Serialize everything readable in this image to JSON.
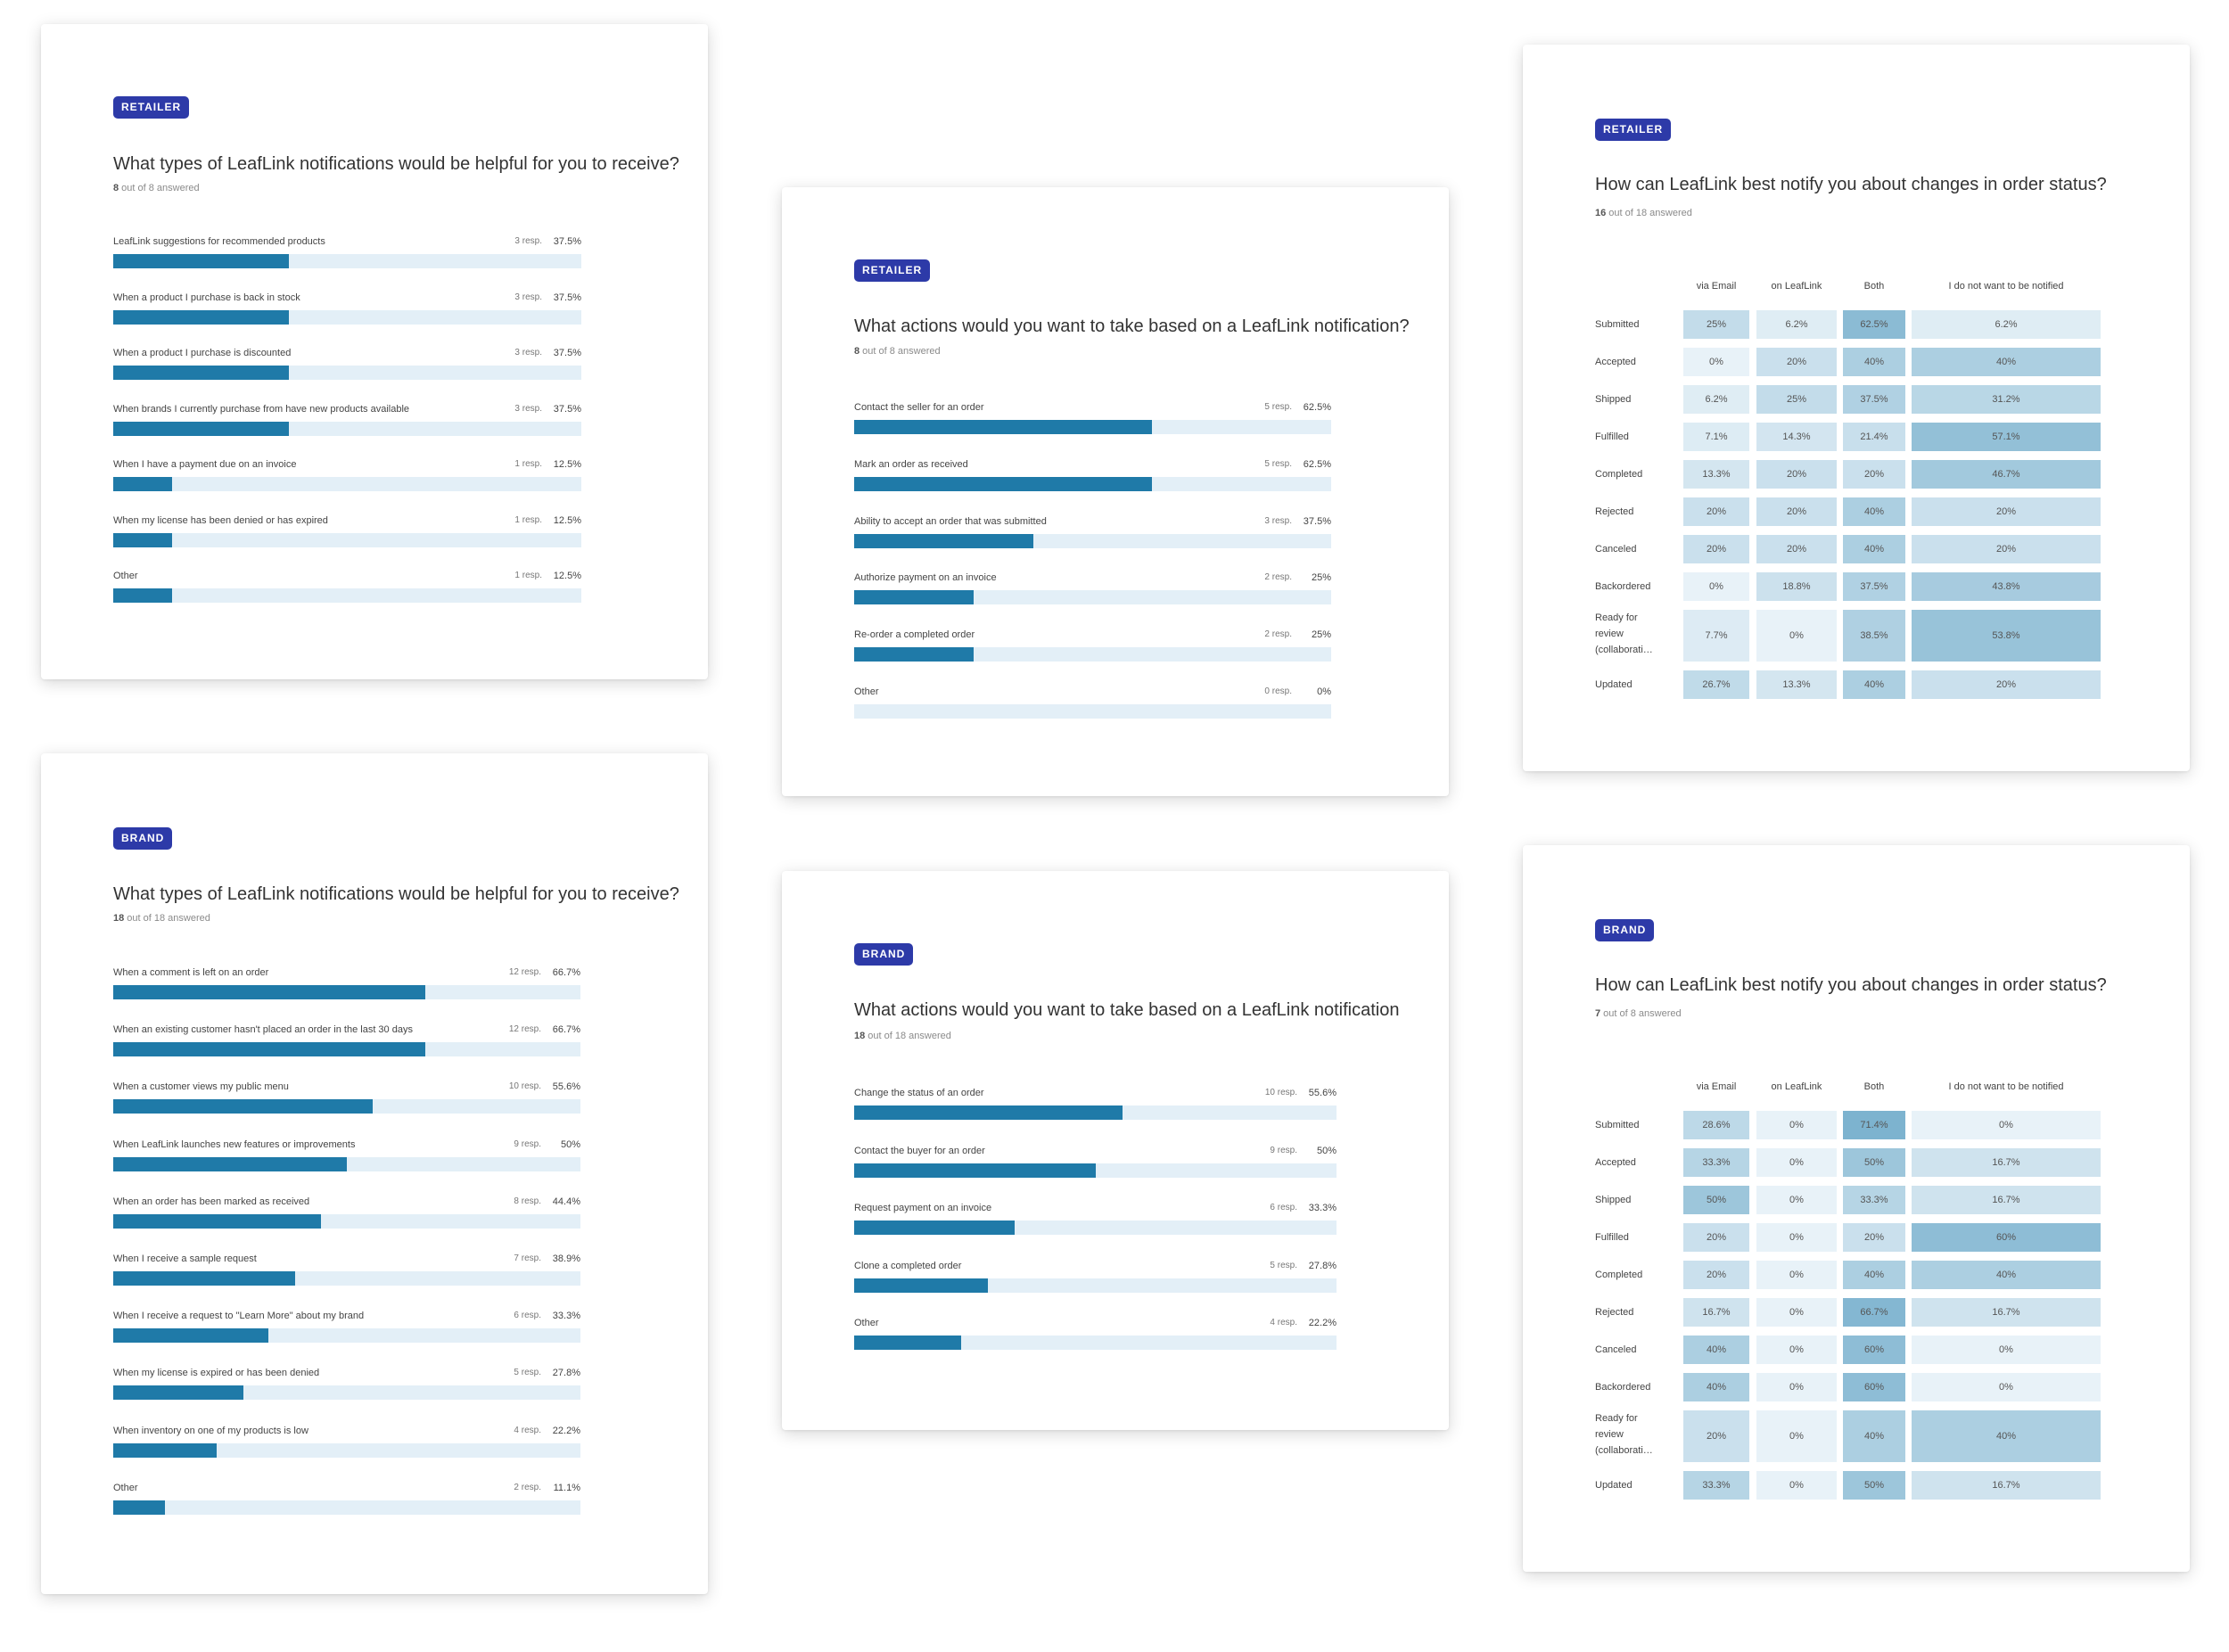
{
  "colors": {
    "tag": "#2d3aa8",
    "bar": "#1f7aa8",
    "track": "#e3eff7"
  },
  "cards": {
    "retailer_types": {
      "tag": "RETAILER",
      "title": "What types of LeafLink notifications would be helpful for you to receive?",
      "answered_count": "8",
      "answered_rest": " out of 8 answered",
      "items": [
        {
          "label": "LeafLink suggestions for recommended products",
          "resp": "3 resp.",
          "pct": "37.5%",
          "value": 37.5
        },
        {
          "label": "When a product I purchase is back in stock",
          "resp": "3 resp.",
          "pct": "37.5%",
          "value": 37.5
        },
        {
          "label": "When a product I purchase is discounted",
          "resp": "3 resp.",
          "pct": "37.5%",
          "value": 37.5
        },
        {
          "label": "When brands I currently purchase from have new products available",
          "resp": "3 resp.",
          "pct": "37.5%",
          "value": 37.5
        },
        {
          "label": "When I have a payment due on an invoice",
          "resp": "1 resp.",
          "pct": "12.5%",
          "value": 12.5
        },
        {
          "label": "When my license has been denied or has expired",
          "resp": "1 resp.",
          "pct": "12.5%",
          "value": 12.5
        },
        {
          "label": "Other",
          "resp": "1 resp.",
          "pct": "12.5%",
          "value": 12.5
        }
      ]
    },
    "brand_types": {
      "tag": "BRAND",
      "title": "What types of LeafLink notifications would be helpful for you to receive?",
      "answered_count": "18",
      "answered_rest": " out of 18 answered",
      "items": [
        {
          "label": "When a comment is left on an order",
          "resp": "12 resp.",
          "pct": "66.7%",
          "value": 66.7
        },
        {
          "label": "When an existing customer hasn't placed an order in the last 30 days",
          "resp": "12 resp.",
          "pct": "66.7%",
          "value": 66.7
        },
        {
          "label": "When a customer views my public menu",
          "resp": "10 resp.",
          "pct": "55.6%",
          "value": 55.6
        },
        {
          "label": "When LeafLink launches new features or improvements",
          "resp": "9 resp.",
          "pct": "50%",
          "value": 50
        },
        {
          "label": "When an order has been marked as received",
          "resp": "8 resp.",
          "pct": "44.4%",
          "value": 44.4
        },
        {
          "label": "When I receive a sample request",
          "resp": "7 resp.",
          "pct": "38.9%",
          "value": 38.9
        },
        {
          "label": "When I receive a request to \"Learn More\" about my brand",
          "resp": "6 resp.",
          "pct": "33.3%",
          "value": 33.3
        },
        {
          "label": "When my license is expired or has been denied",
          "resp": "5 resp.",
          "pct": "27.8%",
          "value": 27.8
        },
        {
          "label": "When inventory on one of my products is low",
          "resp": "4 resp.",
          "pct": "22.2%",
          "value": 22.2
        },
        {
          "label": "Other",
          "resp": "2 resp.",
          "pct": "11.1%",
          "value": 11.1
        }
      ]
    },
    "retailer_actions": {
      "tag": "RETAILER",
      "title": "What actions would you want to take based on a LeafLink notification?",
      "answered_count": "8",
      "answered_rest": " out of 8 answered",
      "items": [
        {
          "label": "Contact the seller for an order",
          "resp": "5 resp.",
          "pct": "62.5%",
          "value": 62.5
        },
        {
          "label": "Mark an order as received",
          "resp": "5 resp.",
          "pct": "62.5%",
          "value": 62.5
        },
        {
          "label": "Ability to accept an order that was submitted",
          "resp": "3 resp.",
          "pct": "37.5%",
          "value": 37.5
        },
        {
          "label": "Authorize payment on an invoice",
          "resp": "2 resp.",
          "pct": "25%",
          "value": 25
        },
        {
          "label": "Re-order a completed order",
          "resp": "2 resp.",
          "pct": "25%",
          "value": 25
        },
        {
          "label": "Other",
          "resp": "0 resp.",
          "pct": "0%",
          "value": 0
        }
      ]
    },
    "brand_actions": {
      "tag": "BRAND",
      "title": "What actions would you want to take based on a LeafLink notification",
      "answered_count": "18",
      "answered_rest": " out of 18 answered",
      "items": [
        {
          "label": "Change the status of an order",
          "resp": "10 resp.",
          "pct": "55.6%",
          "value": 55.6
        },
        {
          "label": "Contact the buyer for an order",
          "resp": "9 resp.",
          "pct": "50%",
          "value": 50
        },
        {
          "label": "Request payment on an invoice",
          "resp": "6 resp.",
          "pct": "33.3%",
          "value": 33.3
        },
        {
          "label": "Clone a completed order",
          "resp": "5 resp.",
          "pct": "27.8%",
          "value": 27.8
        },
        {
          "label": "Other",
          "resp": "4 resp.",
          "pct": "22.2%",
          "value": 22.2
        }
      ]
    },
    "retailer_status": {
      "tag": "RETAILER",
      "title": "How can LeafLink best notify you about changes in order status?",
      "answered_count": "16",
      "answered_rest": " out of 18 answered",
      "columns": [
        "via Email",
        "on LeafLink",
        "Both",
        "I do not want to be notified"
      ],
      "rows": [
        {
          "label": "Submitted",
          "cells": [
            "25%",
            "6.2%",
            "62.5%",
            "6.2%"
          ],
          "values": [
            25,
            6.2,
            62.5,
            6.2
          ]
        },
        {
          "label": "Accepted",
          "cells": [
            "0%",
            "20%",
            "40%",
            "40%"
          ],
          "values": [
            0,
            20,
            40,
            40
          ]
        },
        {
          "label": "Shipped",
          "cells": [
            "6.2%",
            "25%",
            "37.5%",
            "31.2%"
          ],
          "values": [
            6.2,
            25,
            37.5,
            31.2
          ]
        },
        {
          "label": "Fulfilled",
          "cells": [
            "7.1%",
            "14.3%",
            "21.4%",
            "57.1%"
          ],
          "values": [
            7.1,
            14.3,
            21.4,
            57.1
          ]
        },
        {
          "label": "Completed",
          "cells": [
            "13.3%",
            "20%",
            "20%",
            "46.7%"
          ],
          "values": [
            13.3,
            20,
            20,
            46.7
          ]
        },
        {
          "label": "Rejected",
          "cells": [
            "20%",
            "20%",
            "40%",
            "20%"
          ],
          "values": [
            20,
            20,
            40,
            20
          ]
        },
        {
          "label": "Canceled",
          "cells": [
            "20%",
            "20%",
            "40%",
            "20%"
          ],
          "values": [
            20,
            20,
            40,
            20
          ]
        },
        {
          "label": "Backordered",
          "cells": [
            "0%",
            "18.8%",
            "37.5%",
            "43.8%"
          ],
          "values": [
            0,
            18.8,
            37.5,
            43.8
          ]
        },
        {
          "label": "Ready for review (collaborati…",
          "cells": [
            "7.7%",
            "0%",
            "38.5%",
            "53.8%"
          ],
          "values": [
            7.7,
            0,
            38.5,
            53.8
          ]
        },
        {
          "label": "Updated",
          "cells": [
            "26.7%",
            "13.3%",
            "40%",
            "20%"
          ],
          "values": [
            26.7,
            13.3,
            40,
            20
          ]
        }
      ]
    },
    "brand_status": {
      "tag": "BRAND",
      "title": "How can LeafLink best notify you about changes in order status?",
      "answered_count": "7",
      "answered_rest": " out of 8 answered",
      "columns": [
        "via Email",
        "on LeafLink",
        "Both",
        "I do not want to be notified"
      ],
      "rows": [
        {
          "label": "Submitted",
          "cells": [
            "28.6%",
            "0%",
            "71.4%",
            "0%"
          ],
          "values": [
            28.6,
            0,
            71.4,
            0
          ]
        },
        {
          "label": "Accepted",
          "cells": [
            "33.3%",
            "0%",
            "50%",
            "16.7%"
          ],
          "values": [
            33.3,
            0,
            50,
            16.7
          ]
        },
        {
          "label": "Shipped",
          "cells": [
            "50%",
            "0%",
            "33.3%",
            "16.7%"
          ],
          "values": [
            50,
            0,
            33.3,
            16.7
          ]
        },
        {
          "label": "Fulfilled",
          "cells": [
            "20%",
            "0%",
            "20%",
            "60%"
          ],
          "values": [
            20,
            0,
            20,
            60
          ]
        },
        {
          "label": "Completed",
          "cells": [
            "20%",
            "0%",
            "40%",
            "40%"
          ],
          "values": [
            20,
            0,
            40,
            40
          ]
        },
        {
          "label": "Rejected",
          "cells": [
            "16.7%",
            "0%",
            "66.7%",
            "16.7%"
          ],
          "values": [
            16.7,
            0,
            66.7,
            16.7
          ]
        },
        {
          "label": "Canceled",
          "cells": [
            "40%",
            "0%",
            "60%",
            "0%"
          ],
          "values": [
            40,
            0,
            60,
            0
          ]
        },
        {
          "label": "Backordered",
          "cells": [
            "40%",
            "0%",
            "60%",
            "0%"
          ],
          "values": [
            40,
            0,
            60,
            0
          ]
        },
        {
          "label": "Ready for review (collaborati…",
          "cells": [
            "20%",
            "0%",
            "40%",
            "40%"
          ],
          "values": [
            20,
            0,
            40,
            40
          ]
        },
        {
          "label": "Updated",
          "cells": [
            "33.3%",
            "0%",
            "50%",
            "16.7%"
          ],
          "values": [
            33.3,
            0,
            50,
            16.7
          ]
        }
      ]
    }
  }
}
